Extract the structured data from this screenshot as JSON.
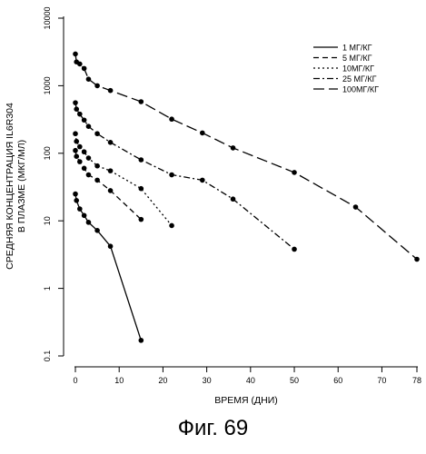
{
  "caption": "Фиг. 69",
  "chart_data": {
    "type": "line",
    "title": "",
    "xlabel": "ВРЕМЯ (ДНИ)",
    "ylabel_lines": [
      "СРЕДНЯЯ КОНЦЕНТРАЦИЯ IL6R304",
      "В ПЛАЗМЕ (МКГ/МЛ)"
    ],
    "y_scale": "log",
    "ylim": [
      0.1,
      10000
    ],
    "y_ticks": [
      0.1,
      1,
      10,
      100,
      1000,
      10000
    ],
    "y_tick_labels": [
      "0.1",
      "1",
      "10",
      "100",
      "1000",
      "10000"
    ],
    "x_ticks": [
      0,
      10,
      20,
      30,
      40,
      50,
      60,
      70,
      78
    ],
    "x_tick_labels": [
      "0",
      "10",
      "20",
      "30",
      "40",
      "50",
      "60",
      "70",
      "78"
    ],
    "xlim": [
      0,
      78
    ],
    "grid": false,
    "legend_position": "top-right",
    "series": [
      {
        "name": "1 МГ/КГ",
        "dash": "solid",
        "x": [
          0,
          0.25,
          1,
          2,
          3,
          5,
          8,
          15
        ],
        "y": [
          25,
          20,
          15,
          12,
          9.5,
          7.2,
          4.2,
          0.17
        ]
      },
      {
        "name": "5 МГ/КГ",
        "dash": "dash",
        "x": [
          0,
          0.25,
          1,
          2,
          3,
          5,
          8,
          15
        ],
        "y": [
          110,
          90,
          75,
          60,
          48,
          40,
          28,
          10.5
        ]
      },
      {
        "name": "10МГ/КГ",
        "dash": "dot",
        "x": [
          0,
          0.25,
          1,
          2,
          3,
          5,
          8,
          15,
          22
        ],
        "y": [
          195,
          150,
          125,
          105,
          85,
          65,
          55,
          30,
          8.5
        ]
      },
      {
        "name": "25 МГ/КГ",
        "dash": "dashdot",
        "x": [
          0,
          0.25,
          1,
          2,
          3,
          5,
          8,
          15,
          22,
          29,
          36,
          50
        ],
        "y": [
          560,
          450,
          380,
          310,
          250,
          195,
          145,
          80,
          48,
          40,
          21,
          3.8
        ]
      },
      {
        "name": "100МГ/КГ",
        "dash": "longdash",
        "x": [
          0,
          0.25,
          1,
          2,
          3,
          5,
          8,
          15,
          22,
          29,
          36,
          50,
          64,
          78
        ],
        "y": [
          2950,
          2250,
          2100,
          1800,
          1250,
          1000,
          850,
          580,
          320,
          200,
          120,
          52,
          16,
          2.7
        ]
      }
    ]
  }
}
